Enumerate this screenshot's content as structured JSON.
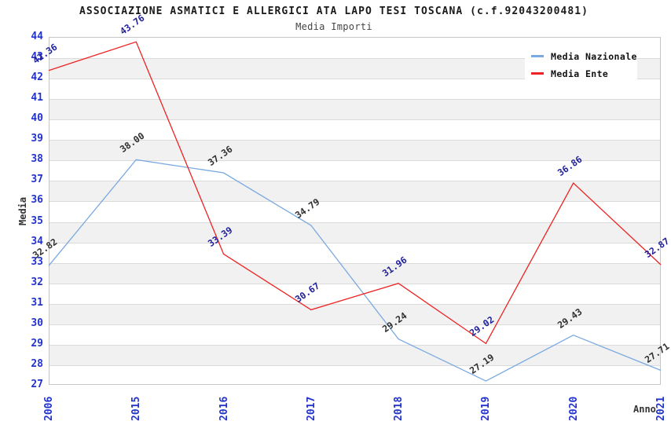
{
  "title": "ASSOCIAZIONE ASMATICI E ALLERGICI ATA LAPO TESI TOSCANA (c.f.92043200481)",
  "subtitle": "Media Importi",
  "axes": {
    "x_title": "Anno",
    "y_title": "Media",
    "y_ticks": [
      27,
      28,
      29,
      30,
      31,
      32,
      33,
      34,
      35,
      36,
      37,
      38,
      39,
      40,
      41,
      42,
      43,
      44
    ]
  },
  "legend": {
    "position": "top-right",
    "entries": [
      {
        "label": "Media Nazionale",
        "color": "#79A9E0"
      },
      {
        "label": "Media Ente",
        "color": "#EE2222"
      }
    ]
  },
  "chart_data": {
    "type": "line",
    "title": "Media Importi",
    "x": [
      "2006",
      "2015",
      "2016",
      "2017",
      "2018",
      "2019",
      "2020",
      "2021"
    ],
    "series": [
      {
        "name": "Media Nazionale",
        "color": "#79A9E0",
        "label_color": "#2F2F2F",
        "values": [
          32.82,
          38.0,
          37.36,
          34.79,
          29.24,
          27.19,
          29.43,
          27.71
        ]
      },
      {
        "name": "Media Ente",
        "color": "#EE2222",
        "label_color": "#1F1F99",
        "values": [
          42.36,
          43.76,
          33.39,
          30.67,
          31.96,
          29.02,
          36.86,
          32.87
        ]
      }
    ],
    "xlabel": "Anno",
    "ylabel": "Media",
    "ylim": [
      27,
      44
    ],
    "grid": "horizontal-bands",
    "legend_position": "top-right",
    "value_labels_shown": true
  },
  "colors": {
    "tick_label": "#2233CC",
    "band": "#F1F1F1",
    "gridline": "#DBDBDB",
    "frame": "#C6C6C6",
    "title": "#1A1A1A",
    "subtitle": "#444444",
    "axis_title": "#333333",
    "legend_text": "#111111",
    "background": "#FFFFFF"
  }
}
